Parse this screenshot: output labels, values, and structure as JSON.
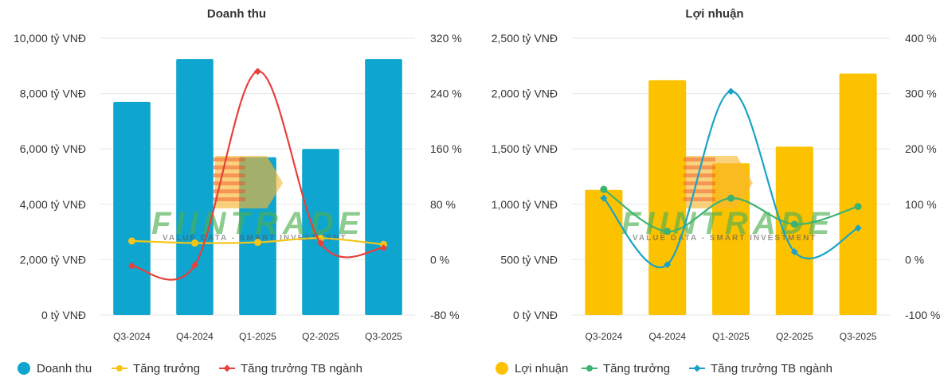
{
  "chart_data": [
    {
      "type": "bar+line",
      "title": "Doanh thu",
      "categories": [
        "Q3-2024",
        "Q4-2024",
        "Q1-2025",
        "Q2-2025",
        "Q3-2025"
      ],
      "left_axis": {
        "min": 0,
        "max": 10000,
        "step": 2000,
        "tick_labels": [
          "0 tỷ VNĐ",
          "2,000 tỷ VNĐ",
          "4,000 tỷ VNĐ",
          "6,000 tỷ VNĐ",
          "8,000 tỷ VNĐ",
          "10,000 tỷ VNĐ"
        ]
      },
      "right_axis": {
        "min": -80,
        "max": 320,
        "step": 80,
        "tick_labels": [
          "-80 %",
          "0 %",
          "80 %",
          "160 %",
          "240 %",
          "320 %"
        ]
      },
      "bar_series": {
        "name": "Doanh thu",
        "color": "#0ea5cf",
        "values": [
          7700,
          9250,
          5700,
          6000,
          9250
        ]
      },
      "line_series": [
        {
          "name": "Tăng trưởng",
          "color": "#f5c518",
          "marker": "circle",
          "values": [
            27,
            24,
            25,
            31,
            22
          ]
        },
        {
          "name": "Tăng trưởng TB ngành",
          "color": "#e8403a",
          "marker": "diamond",
          "values": [
            -9,
            -8,
            272,
            24,
            17
          ]
        }
      ],
      "legend": [
        "Doanh thu",
        "Tăng trưởng",
        "Tăng trưởng TB ngành"
      ],
      "legend_position": "bottom-left"
    },
    {
      "type": "bar+line",
      "title": "Lợi nhuận",
      "categories": [
        "Q3-2024",
        "Q4-2024",
        "Q1-2025",
        "Q2-2025",
        "Q3-2025"
      ],
      "left_axis": {
        "min": 0,
        "max": 2500,
        "step": 500,
        "tick_labels": [
          "0 tỷ VNĐ",
          "500 tỷ VNĐ",
          "1,000 tỷ VNĐ",
          "1,500 tỷ VNĐ",
          "2,000 tỷ VNĐ",
          "2,500 tỷ VNĐ"
        ]
      },
      "right_axis": {
        "min": -100,
        "max": 400,
        "step": 100,
        "tick_labels": [
          "-100 %",
          "0 %",
          "100 %",
          "200 %",
          "300 %",
          "400 %"
        ]
      },
      "bar_series": {
        "name": "Lợi nhuận",
        "color": "#fcc200",
        "values": [
          1130,
          2120,
          1370,
          1520,
          2180
        ]
      },
      "line_series": [
        {
          "name": "Tăng trưởng",
          "color": "#3cb371",
          "marker": "circle",
          "values": [
            127,
            51,
            111,
            64,
            96
          ]
        },
        {
          "name": "Tăng trưởng TB ngành",
          "color": "#1ba3c6",
          "marker": "diamond",
          "values": [
            111,
            -9,
            304,
            14,
            57
          ]
        }
      ],
      "legend": [
        "Lợi nhuận",
        "Tăng trưởng",
        "Tăng trưởng TB ngành"
      ],
      "legend_position": "bottom-left"
    }
  ],
  "watermark": {
    "brand": "FIINTRADE",
    "tagline": "VALUE DATA - SMART INVESTMENT"
  }
}
